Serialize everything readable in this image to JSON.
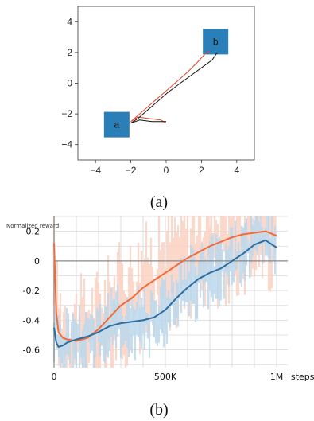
{
  "chart_data": [
    {
      "type": "line",
      "caption": "(a)",
      "xlim": [
        -5,
        5
      ],
      "ylim": [
        -5,
        5
      ],
      "x_ticks": [
        "−4",
        "−2",
        "0",
        "2",
        "4"
      ],
      "y_ticks": [
        "4",
        "2",
        "0",
        "−2",
        "−4"
      ],
      "boxes": [
        {
          "label": "a",
          "x": -2.8,
          "y": -2.7,
          "color": "#2a7fb8"
        },
        {
          "label": "b",
          "x": 2.8,
          "y": 2.7,
          "color": "#2a7fb8"
        }
      ],
      "series": [
        {
          "color": "#e8422a",
          "x": [
            2.5,
            2.2,
            1.8,
            1.2,
            0.5,
            -0.2,
            -0.8,
            -1.3,
            -1.7,
            -2.0,
            -1.6,
            -1.0,
            -0.3,
            0.0
          ],
          "y": [
            2.1,
            1.9,
            1.4,
            0.7,
            0.0,
            -0.7,
            -1.3,
            -1.8,
            -2.2,
            -2.5,
            -2.2,
            -2.3,
            -2.4,
            -2.6
          ]
        },
        {
          "color": "#111111",
          "x": [
            2.9,
            2.6,
            2.0,
            1.4,
            0.8,
            0.1,
            -0.5,
            -1.1,
            -1.6,
            -2.0,
            -1.5,
            -0.8,
            0.0
          ],
          "y": [
            2.0,
            1.5,
            1.0,
            0.5,
            0.0,
            -0.6,
            -1.2,
            -1.8,
            -2.3,
            -2.6,
            -2.4,
            -2.5,
            -2.5
          ]
        }
      ]
    },
    {
      "type": "line",
      "caption": "(b)",
      "ylabel": "Normalized reward",
      "xlabel": "steps",
      "xlim": [
        0,
        1050000
      ],
      "ylim": [
        -0.72,
        0.3
      ],
      "x_ticks": [
        {
          "v": 0,
          "label": "0"
        },
        {
          "v": 500000,
          "label": "500K"
        },
        {
          "v": 1000000,
          "label": "1M"
        }
      ],
      "y_ticks": [
        {
          "v": 0.2,
          "label": "0.2"
        },
        {
          "v": 0.0,
          "label": "0"
        },
        {
          "v": -0.2,
          "label": "-0.2"
        },
        {
          "v": -0.4,
          "label": "-0.4"
        },
        {
          "v": -0.6,
          "label": "-0.6"
        }
      ],
      "grid": true,
      "series": [
        {
          "color": "#f26b3a",
          "band": "#fcd2c2",
          "x": [
            0,
            10000,
            20000,
            40000,
            60000,
            100000,
            150000,
            200000,
            250000,
            300000,
            350000,
            400000,
            450000,
            500000,
            550000,
            600000,
            650000,
            700000,
            750000,
            800000,
            850000,
            900000,
            950000,
            1000000
          ],
          "y": [
            0.12,
            -0.35,
            -0.48,
            -0.52,
            -0.53,
            -0.54,
            -0.52,
            -0.46,
            -0.38,
            -0.3,
            -0.25,
            -0.18,
            -0.13,
            -0.08,
            -0.03,
            0.02,
            0.06,
            0.1,
            0.13,
            0.16,
            0.18,
            0.19,
            0.2,
            0.17
          ]
        },
        {
          "color": "#2c6da0",
          "band": "#bcd9ee",
          "x": [
            0,
            10000,
            20000,
            40000,
            60000,
            100000,
            150000,
            200000,
            250000,
            300000,
            350000,
            400000,
            450000,
            500000,
            550000,
            600000,
            650000,
            700000,
            750000,
            800000,
            850000,
            900000,
            950000,
            1000000
          ],
          "y": [
            -0.45,
            -0.55,
            -0.58,
            -0.57,
            -0.55,
            -0.53,
            -0.51,
            -0.48,
            -0.44,
            -0.42,
            -0.41,
            -0.4,
            -0.38,
            -0.33,
            -0.25,
            -0.18,
            -0.12,
            -0.08,
            -0.05,
            0.0,
            0.05,
            0.11,
            0.14,
            0.09
          ]
        }
      ]
    }
  ]
}
